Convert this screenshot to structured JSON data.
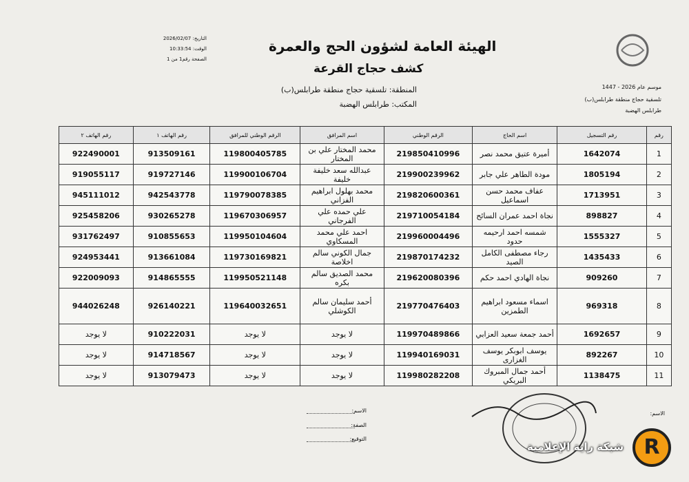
{
  "header": {
    "title": "الهيئة العامة لشؤون الحج والعمرة",
    "subtitle": "كشف حجاج القرعة",
    "region": "المنطقة: تلسقية حجاج منطقة طرابلس(ب)",
    "office": "المكتب: طرابلس الهضبة",
    "date": "التاريخ: 2026/02/07",
    "time": "الوقت: 10:33:54",
    "page": "الصفحة رقم1 من 1",
    "season": "موسم عام 2026 - 1447",
    "region_short": "تلسقية حجاج منطقة طرابلس(ب)",
    "office_short": "طرابلس الهضبة"
  },
  "table": {
    "columns": [
      "رقم",
      "رقم التسجيل",
      "اسم الحاج",
      "الرقم الوطني",
      "اسم المرافق",
      "الرقم الوطني للمرافق",
      "رقم الهاتف ١",
      "رقم الهاتف ٢"
    ],
    "rows": [
      [
        "1",
        "1642074",
        "أميرة عتيق محمد نصر",
        "219850410996",
        "محمد المختار علي بن المختار",
        "119800405785",
        "913509161",
        "922490001"
      ],
      [
        "2",
        "1805194",
        "مودة الطاهر علي جابر",
        "219900239962",
        "عبدالله سعد خليفة خليفة",
        "119900106704",
        "919727146",
        "919055117"
      ],
      [
        "3",
        "1713951",
        "عفاف محمد حسن اسماعيل",
        "219820600361",
        "محمد بهلول ابراهيم الفزاني",
        "119790078385",
        "942543778",
        "945111012"
      ],
      [
        "4",
        "898827",
        "نجاة احمد عمران السائح",
        "219710054184",
        "علي حمده علي الفرجاني",
        "119670306957",
        "930265278",
        "925458206"
      ],
      [
        "5",
        "1555327",
        "شمسه احمد ارحيمه حدود",
        "219960004496",
        "احمد علي محمد المسكاوي",
        "119950104604",
        "910855653",
        "931762497"
      ],
      [
        "6",
        "1435433",
        "رجاء مصطفى الكامل الصيد",
        "219870174232",
        "جمال الكوني سالم اخلاصة",
        "119730169821",
        "913661084",
        "924953441"
      ],
      [
        "7",
        "909260",
        "نجاة الهادي احمد حكم",
        "219620080396",
        "محمد الصديق سالم بكره",
        "119950521148",
        "914865555",
        "922009093"
      ],
      [
        "8",
        "969318",
        "اسماء مسعود ابراهيم الطمزين",
        "219770476403",
        "أحمد سليمان سالم الكوشلي",
        "119640032651",
        "926140221",
        "944026248"
      ],
      [
        "9",
        "1692657",
        "أحمد جمعة سعيد العزابي",
        "119970489866",
        "لا يوجد",
        "لا يوجد",
        "910222031",
        "لا يوجد"
      ],
      [
        "10",
        "892267",
        "يوسف ابوبكر يوسف الغزارى",
        "119940169031",
        "لا يوجد",
        "لا يوجد",
        "914718567",
        "لا يوجد"
      ],
      [
        "11",
        "1138475",
        "أحمد جمال المبروك البريكي",
        "119980282208",
        "لا يوجد",
        "لا يوجد",
        "913079473",
        "لا يوجد"
      ]
    ]
  },
  "footer": {
    "name_label": "الاسم:",
    "role_label": "الصفة:",
    "signature_label": "التوقيع:",
    "right_name_label": "الاسم:"
  },
  "watermark": {
    "text": "شبكة راية الإعلامية",
    "logo": "R"
  }
}
